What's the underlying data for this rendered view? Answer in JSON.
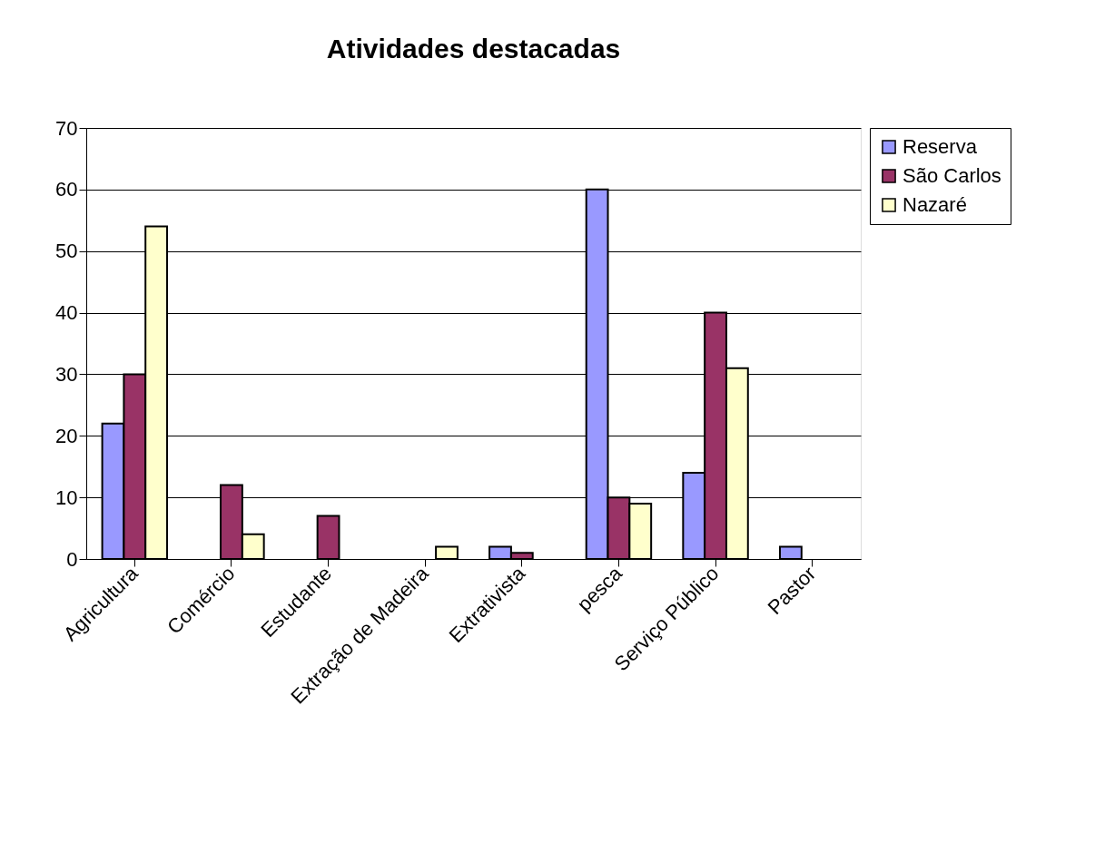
{
  "chart_data": {
    "type": "bar",
    "title": "Atividades destacadas",
    "categories": [
      "Agricultura",
      "Comércio",
      "Estudante",
      "Extração de Madeira",
      "Extrativista",
      "pesca",
      "Serviço Público",
      "Pastor"
    ],
    "series": [
      {
        "name": "Reserva",
        "color": "#9999ff",
        "values": [
          22,
          null,
          null,
          null,
          2,
          60,
          14,
          2
        ]
      },
      {
        "name": "São Carlos",
        "color": "#993366",
        "values": [
          30,
          12,
          7,
          null,
          1,
          10,
          40,
          null
        ]
      },
      {
        "name": "Nazaré",
        "color": "#ffffcc",
        "values": [
          54,
          4,
          null,
          2,
          null,
          9,
          31,
          null
        ]
      }
    ],
    "ylim": [
      0,
      70
    ],
    "yticks": [
      0,
      10,
      20,
      30,
      40,
      50,
      60,
      70
    ],
    "grid": "y",
    "legend": "right"
  }
}
